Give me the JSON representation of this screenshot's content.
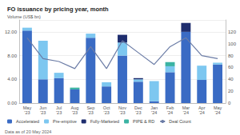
{
  "chart_data": {
    "type": "bar",
    "title": "FO issuance by pricing year, month",
    "ylabel": "Volume (US$ bn)",
    "annotations": [
      "Data as of 20 May 2024"
    ],
    "categories": [
      "May '23",
      "Jun '23",
      "Jul '23",
      "Aug '23",
      "Sep '23",
      "Oct '23",
      "Nov '23",
      "Dec '23",
      "Jan '24",
      "Feb '24",
      "Mar '24",
      "Apr '24",
      "May '24"
    ],
    "stacked": true,
    "grid": true,
    "legend": "bottom",
    "ylim": [
      0,
      14
    ],
    "yticks": [
      {
        "value": 0,
        "label": "0.00"
      },
      {
        "value": 4,
        "label": "4.00"
      },
      {
        "value": 8,
        "label": "8.00"
      },
      {
        "value": 12,
        "label": "12.00"
      }
    ],
    "y2lim": [
      0,
      140
    ],
    "y2ticks": [
      0,
      20,
      40,
      60,
      80,
      100,
      120
    ],
    "series": [
      {
        "name": "Accelerated",
        "type": "bar",
        "color": "#3a6bc4",
        "values": [
          12.2,
          4.0,
          4.2,
          2.3,
          11.0,
          2.8,
          8.0,
          3.6,
          0.3,
          5.2,
          12.0,
          3.9,
          6.5
        ]
      },
      {
        "name": "Pre-emptive",
        "type": "bar",
        "color": "#7dc7f0",
        "values": [
          0.5,
          6.5,
          0.9,
          0.0,
          0.7,
          0.7,
          2.2,
          0.4,
          3.4,
          1.0,
          0.0,
          2.4,
          0.3
        ]
      },
      {
        "name": "Fully-Marketed",
        "type": "bar",
        "color": "#1e2d6e",
        "values": [
          0.0,
          0.0,
          0.0,
          0.0,
          0.0,
          0.0,
          1.3,
          0.2,
          0.0,
          0.0,
          1.5,
          0.0,
          0.0
        ]
      },
      {
        "name": "PIPE & RD",
        "type": "bar",
        "color": "#3bb3a3",
        "values": [
          0.0,
          0.0,
          0.0,
          0.3,
          0.0,
          0.0,
          0.0,
          0.0,
          0.0,
          0.7,
          0.0,
          0.0,
          0.0
        ]
      },
      {
        "name": "Deal Count",
        "type": "line",
        "axis": "y2",
        "color": "#6b7ca6",
        "values": [
          110,
          75,
          70,
          58,
          95,
          58,
          105,
          85,
          65,
          95,
          110,
          80,
          75
        ]
      }
    ]
  }
}
